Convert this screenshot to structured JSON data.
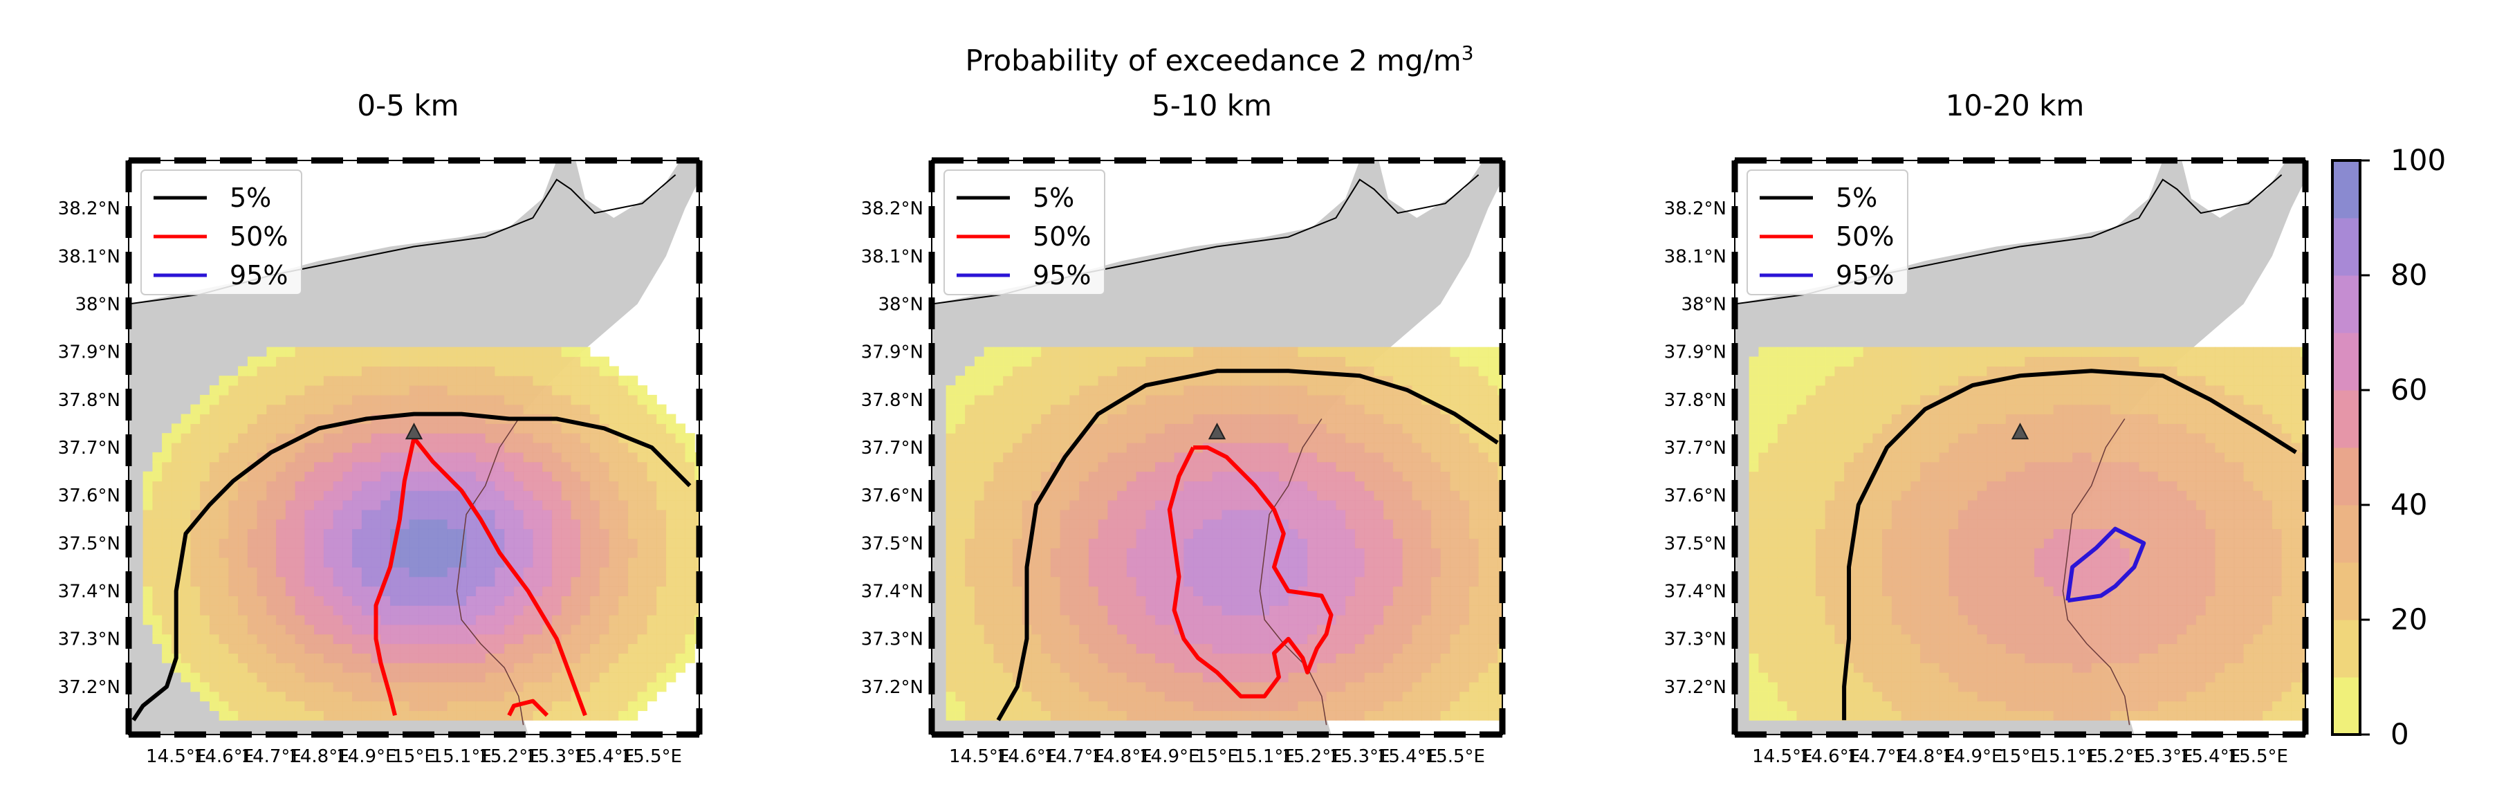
{
  "figure": {
    "suptitle_prefix": "Probability of exceedance 2 mg/m",
    "suptitle_superscript": "3",
    "colormap": [
      "#f0f07a",
      "#f0d67b",
      "#eec27e",
      "#ecb484",
      "#e9a68c",
      "#e596a8",
      "#d98fc0",
      "#c58dd1",
      "#a889d6",
      "#8a8ad0"
    ]
  },
  "chart_data": [
    {
      "type": "heatmap",
      "title": "0-5 km",
      "xlim": [
        14.4,
        15.6
      ],
      "ylim": [
        37.1,
        38.3
      ],
      "xticks": [
        14.5,
        14.6,
        14.7,
        14.8,
        14.9,
        15.0,
        15.1,
        15.2,
        15.3,
        15.4,
        15.5
      ],
      "xtick_labels": [
        "14.5°E",
        "14.6°E",
        "14.7°E",
        "14.8°E",
        "14.9°E",
        "15°E",
        "15.1°E",
        "15.2°E",
        "15.3°E",
        "15.4°E",
        "15.5°E"
      ],
      "yticks": [
        37.2,
        37.3,
        37.4,
        37.5,
        37.6,
        37.7,
        37.8,
        37.9,
        38.0,
        38.1,
        38.2
      ],
      "ytick_labels": [
        "37.2°N",
        "37.3°N",
        "37.4°N",
        "37.5°N",
        "37.6°N",
        "37.7°N",
        "37.8°N",
        "37.9°N",
        "38°N",
        "38.1°N",
        "38.2°N"
      ],
      "vent": {
        "lon": 15.0,
        "lat": 37.73
      },
      "probability_field": {
        "center_lon": 15.02,
        "center_lat": 37.48,
        "peak_percent": 90,
        "radius_deg": 0.6
      },
      "legend": {
        "position": "upper left",
        "entries": [
          "5%",
          "50%",
          "95%"
        ]
      },
      "contours": [
        {
          "level": "5%",
          "color": "#000000",
          "path": [
            [
              14.41,
              37.13
            ],
            [
              14.43,
              37.16
            ],
            [
              14.48,
              37.2
            ],
            [
              14.5,
              37.26
            ],
            [
              14.5,
              37.4
            ],
            [
              14.52,
              37.52
            ],
            [
              14.57,
              37.58
            ],
            [
              14.62,
              37.63
            ],
            [
              14.7,
              37.69
            ],
            [
              14.8,
              37.74
            ],
            [
              14.9,
              37.76
            ],
            [
              15.0,
              37.77
            ],
            [
              15.1,
              37.77
            ],
            [
              15.2,
              37.76
            ],
            [
              15.3,
              37.76
            ],
            [
              15.4,
              37.74
            ],
            [
              15.5,
              37.7
            ],
            [
              15.58,
              37.62
            ]
          ]
        },
        {
          "level": "50%",
          "color": "#ff0000",
          "path": [
            [
              14.96,
              37.14
            ],
            [
              14.95,
              37.18
            ],
            [
              14.93,
              37.25
            ],
            [
              14.92,
              37.3
            ],
            [
              14.92,
              37.37
            ],
            [
              14.95,
              37.45
            ],
            [
              14.97,
              37.55
            ],
            [
              14.98,
              37.63
            ],
            [
              15.0,
              37.72
            ],
            [
              15.04,
              37.67
            ],
            [
              15.1,
              37.61
            ],
            [
              15.14,
              37.55
            ],
            [
              15.18,
              37.48
            ],
            [
              15.24,
              37.4
            ],
            [
              15.3,
              37.3
            ],
            [
              15.33,
              37.22
            ],
            [
              15.36,
              37.14
            ]
          ]
        },
        {
          "level": "50%",
          "color": "#ff0000",
          "path": [
            [
              15.2,
              37.14
            ],
            [
              15.21,
              37.16
            ],
            [
              15.25,
              37.17
            ],
            [
              15.27,
              37.15
            ],
            [
              15.28,
              37.14
            ]
          ]
        }
      ]
    },
    {
      "type": "heatmap",
      "title": "5-10 km",
      "xlim": [
        14.4,
        15.6
      ],
      "ylim": [
        37.1,
        38.3
      ],
      "xticks": [
        14.5,
        14.6,
        14.7,
        14.8,
        14.9,
        15.0,
        15.1,
        15.2,
        15.3,
        15.4,
        15.5
      ],
      "xtick_labels": [
        "14.5°E",
        "14.6°E",
        "14.7°E",
        "14.8°E",
        "14.9°E",
        "15°E",
        "15.1°E",
        "15.2°E",
        "15.3°E",
        "15.4°E",
        "15.5°E"
      ],
      "yticks": [
        37.2,
        37.3,
        37.4,
        37.5,
        37.6,
        37.7,
        37.8,
        37.9,
        38.0,
        38.1,
        38.2
      ],
      "ytick_labels": [
        "37.2°N",
        "37.3°N",
        "37.4°N",
        "37.5°N",
        "37.6°N",
        "37.7°N",
        "37.8°N",
        "37.9°N",
        "38°N",
        "38.1°N",
        "38.2°N"
      ],
      "vent": {
        "lon": 15.0,
        "lat": 37.73
      },
      "probability_field": {
        "center_lon": 15.05,
        "center_lat": 37.45,
        "peak_percent": 72,
        "radius_deg": 0.75
      },
      "legend": {
        "position": "upper left",
        "entries": [
          "5%",
          "50%",
          "95%"
        ]
      },
      "contours": [
        {
          "level": "5%",
          "color": "#000000",
          "path": [
            [
              14.54,
              37.13
            ],
            [
              14.58,
              37.2
            ],
            [
              14.6,
              37.3
            ],
            [
              14.6,
              37.45
            ],
            [
              14.62,
              37.58
            ],
            [
              14.68,
              37.68
            ],
            [
              14.75,
              37.77
            ],
            [
              14.85,
              37.83
            ],
            [
              15.0,
              37.86
            ],
            [
              15.15,
              37.86
            ],
            [
              15.3,
              37.85
            ],
            [
              15.4,
              37.82
            ],
            [
              15.5,
              37.77
            ],
            [
              15.59,
              37.71
            ]
          ]
        },
        {
          "level": "50%",
          "color": "#ff0000",
          "path": [
            [
              14.95,
              37.7
            ],
            [
              14.92,
              37.64
            ],
            [
              14.9,
              37.57
            ],
            [
              14.91,
              37.5
            ],
            [
              14.92,
              37.43
            ],
            [
              14.91,
              37.36
            ],
            [
              14.93,
              37.3
            ],
            [
              14.96,
              37.26
            ],
            [
              15.0,
              37.23
            ],
            [
              15.03,
              37.2
            ],
            [
              15.05,
              37.18
            ],
            [
              15.1,
              37.18
            ],
            [
              15.13,
              37.22
            ],
            [
              15.12,
              37.27
            ],
            [
              15.15,
              37.3
            ],
            [
              15.18,
              37.26
            ],
            [
              15.19,
              37.23
            ],
            [
              15.21,
              37.28
            ],
            [
              15.23,
              37.31
            ],
            [
              15.24,
              37.35
            ],
            [
              15.22,
              37.39
            ],
            [
              15.15,
              37.4
            ],
            [
              15.12,
              37.45
            ],
            [
              15.14,
              37.52
            ],
            [
              15.12,
              37.57
            ],
            [
              15.08,
              37.62
            ],
            [
              15.02,
              37.68
            ],
            [
              14.98,
              37.7
            ],
            [
              14.95,
              37.7
            ]
          ]
        }
      ]
    },
    {
      "type": "heatmap",
      "title": "10-20 km",
      "xlim": [
        14.4,
        15.6
      ],
      "ylim": [
        37.1,
        38.3
      ],
      "xticks": [
        14.5,
        14.6,
        14.7,
        14.8,
        14.9,
        15.0,
        15.1,
        15.2,
        15.3,
        15.4,
        15.5
      ],
      "xtick_labels": [
        "14.5°E",
        "14.6°E",
        "14.7°E",
        "14.8°E",
        "14.9°E",
        "15°E",
        "15.1°E",
        "15.2°E",
        "15.3°E",
        "15.4°E",
        "15.5°E"
      ],
      "yticks": [
        37.2,
        37.3,
        37.4,
        37.5,
        37.6,
        37.7,
        37.8,
        37.9,
        38.0,
        38.1,
        38.2
      ],
      "ytick_labels": [
        "37.2°N",
        "37.3°N",
        "37.4°N",
        "37.5°N",
        "37.6°N",
        "37.7°N",
        "37.8°N",
        "37.9°N",
        "38°N",
        "38.1°N",
        "38.2°N"
      ],
      "vent": {
        "lon": 15.0,
        "lat": 37.73
      },
      "probability_field": {
        "center_lon": 15.12,
        "center_lat": 37.45,
        "peak_percent": 48,
        "radius_deg": 0.85
      },
      "legend": {
        "position": "upper left",
        "entries": [
          "5%",
          "50%",
          "95%"
        ]
      },
      "contours": [
        {
          "level": "5%",
          "color": "#000000",
          "path": [
            [
              14.63,
              37.13
            ],
            [
              14.63,
              37.2
            ],
            [
              14.64,
              37.3
            ],
            [
              14.64,
              37.45
            ],
            [
              14.66,
              37.58
            ],
            [
              14.72,
              37.7
            ],
            [
              14.8,
              37.78
            ],
            [
              14.9,
              37.83
            ],
            [
              15.0,
              37.85
            ],
            [
              15.15,
              37.86
            ],
            [
              15.3,
              37.85
            ],
            [
              15.4,
              37.8
            ],
            [
              15.5,
              37.74
            ],
            [
              15.58,
              37.69
            ]
          ]
        },
        {
          "color": "#2b14d6",
          "path": [
            [
              15.1,
              37.38
            ],
            [
              15.11,
              37.45
            ],
            [
              15.16,
              37.49
            ],
            [
              15.2,
              37.53
            ],
            [
              15.26,
              37.5
            ],
            [
              15.24,
              37.45
            ],
            [
              15.2,
              37.41
            ],
            [
              15.17,
              37.39
            ],
            [
              15.1,
              37.38
            ]
          ]
        }
      ]
    }
  ],
  "colorbar": {
    "ticks": [
      0,
      20,
      40,
      60,
      80,
      100
    ],
    "tick_labels": [
      "0",
      "20",
      "40",
      "60",
      "80",
      "100"
    ],
    "range": [
      0,
      100
    ]
  }
}
